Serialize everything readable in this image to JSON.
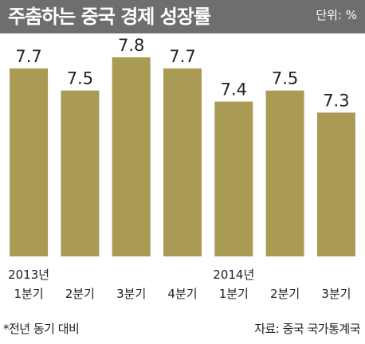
{
  "header": {
    "title": "주춤하는 중국 경제 성장률",
    "unit": "단위: %"
  },
  "footer": {
    "note": "*전년 동기 대비",
    "source": "자료: 중국 국가통계국"
  },
  "colors": {
    "header_bg": "#6e6e6e",
    "bar": "#a99a54",
    "text": "#222222"
  },
  "chart_data": {
    "type": "bar",
    "title": "주춤하는 중국 경제 성장률",
    "unit": "단위: %",
    "categories": [
      [
        "2013년",
        "1분기"
      ],
      [
        "",
        "2분기"
      ],
      [
        "",
        "3분기"
      ],
      [
        "",
        "4분기"
      ],
      [
        "2014년",
        "1분기"
      ],
      [
        "",
        "2분기"
      ],
      [
        "",
        "3분기"
      ]
    ],
    "values": [
      7.7,
      7.5,
      7.8,
      7.7,
      7.4,
      7.5,
      7.3
    ],
    "value_labels": [
      "7.7",
      "7.5",
      "7.8",
      "7.7",
      "7.4",
      "7.5",
      "7.3"
    ],
    "ylim": [
      0,
      7.8
    ],
    "grid": false,
    "legend": "none"
  }
}
